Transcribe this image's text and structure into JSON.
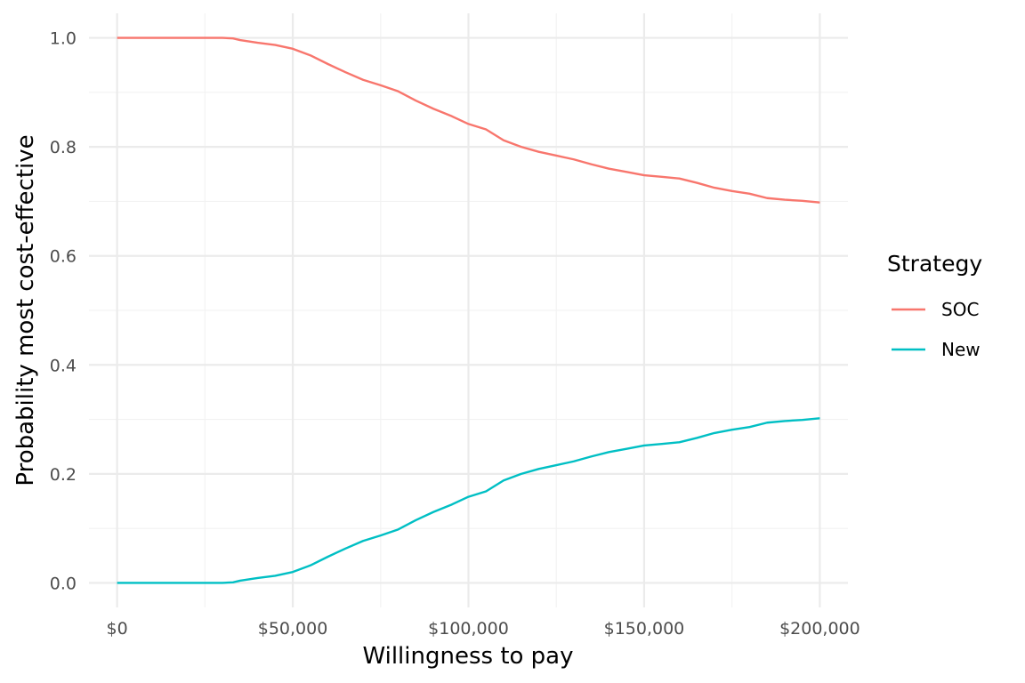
{
  "chart_data": {
    "type": "line",
    "title": "",
    "xlabel": "Willingness to pay",
    "ylabel": "Probability most cost-effective",
    "xlim": [
      -8000,
      208000
    ],
    "ylim": [
      -0.045,
      1.045
    ],
    "x_ticks": [
      0,
      50000,
      100000,
      150000,
      200000
    ],
    "x_tick_labels": [
      "$0",
      "$50,000",
      "$100,000",
      "$150,000",
      "$200,000"
    ],
    "y_ticks": [
      0,
      0.2,
      0.4,
      0.6,
      0.8,
      1.0
    ],
    "y_tick_labels": [
      "0.0",
      "0.2",
      "0.4",
      "0.6",
      "0.8",
      "1.0"
    ],
    "grid": true,
    "legend": {
      "title": "Strategy",
      "position": "right"
    },
    "series": [
      {
        "name": "SOC",
        "color": "#F8766D",
        "x": [
          0,
          10000,
          20000,
          30000,
          33000,
          35000,
          40000,
          45000,
          50000,
          55000,
          60000,
          65000,
          70000,
          75000,
          80000,
          85000,
          90000,
          95000,
          100000,
          105000,
          110000,
          115000,
          120000,
          125000,
          130000,
          135000,
          140000,
          145000,
          150000,
          155000,
          160000,
          165000,
          170000,
          175000,
          180000,
          185000,
          190000,
          195000,
          200000
        ],
        "y": [
          1.0,
          1.0,
          1.0,
          1.0,
          0.999,
          0.996,
          0.991,
          0.987,
          0.98,
          0.968,
          0.952,
          0.937,
          0.923,
          0.913,
          0.902,
          0.885,
          0.87,
          0.857,
          0.842,
          0.832,
          0.812,
          0.8,
          0.791,
          0.784,
          0.777,
          0.768,
          0.76,
          0.754,
          0.748,
          0.745,
          0.742,
          0.734,
          0.725,
          0.719,
          0.714,
          0.706,
          0.703,
          0.701,
          0.698
        ]
      },
      {
        "name": "New",
        "color": "#00BFC4",
        "x": [
          0,
          10000,
          20000,
          30000,
          33000,
          35000,
          40000,
          45000,
          50000,
          55000,
          60000,
          65000,
          70000,
          75000,
          80000,
          85000,
          90000,
          95000,
          100000,
          105000,
          110000,
          115000,
          120000,
          125000,
          130000,
          135000,
          140000,
          145000,
          150000,
          155000,
          160000,
          165000,
          170000,
          175000,
          180000,
          185000,
          190000,
          195000,
          200000
        ],
        "y": [
          0.0,
          0.0,
          0.0,
          0.0,
          0.001,
          0.004,
          0.009,
          0.013,
          0.02,
          0.032,
          0.048,
          0.063,
          0.077,
          0.087,
          0.098,
          0.115,
          0.13,
          0.143,
          0.158,
          0.168,
          0.188,
          0.2,
          0.209,
          0.216,
          0.223,
          0.232,
          0.24,
          0.246,
          0.252,
          0.255,
          0.258,
          0.266,
          0.275,
          0.281,
          0.286,
          0.294,
          0.297,
          0.299,
          0.302
        ]
      }
    ]
  }
}
